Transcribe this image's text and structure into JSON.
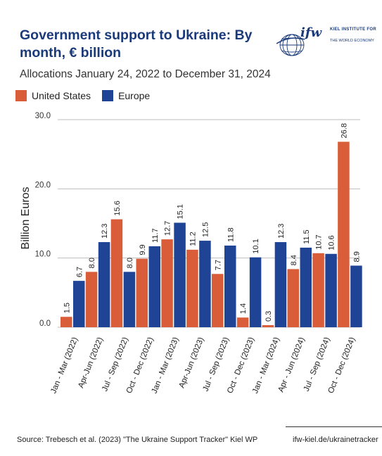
{
  "header": {
    "title": "Government support to Ukraine: By month, € billion",
    "subtitle": "Allocations January 24, 2022 to December 31, 2024"
  },
  "logo": {
    "word": "ifw",
    "line1": "KIEL INSTITUTE FOR",
    "line2": "THE WORLD ECONOMY"
  },
  "footer": {
    "source": "Source: Trebesch et al. (2023) \"The Ukraine Support Tracker\" Kiel WP",
    "url": "ifw-kiel.de/ukrainetracker"
  },
  "colors": {
    "united_states": "#d95d38",
    "europe": "#1f4496",
    "grid": "#bdbdbd",
    "title": "#1a3a7a"
  },
  "chart_data": {
    "type": "bar",
    "ylabel": "Billion Euros",
    "ylim": [
      0,
      30
    ],
    "yticks": [
      "0.0",
      "10.0",
      "20.0",
      "30.0"
    ],
    "grid": true,
    "legend_position": "top-left",
    "categories": [
      "Jan - Mar (2022)",
      "Apr-Jun (2022)",
      "Jul - Sep (2022)",
      "Oct - Dec (2022)",
      "Jan - Mar (2023)",
      "Apr-Jun (2023)",
      "Jul - Sep (2023)",
      "Oct - Dec (2023)",
      "Jan - Mar (2024)",
      "Apr - Jun (2024)",
      "Jul - Sep (2024)",
      "Oct - Dec (2024)"
    ],
    "series": [
      {
        "name": "United States",
        "values": [
          1.5,
          8.0,
          15.6,
          9.9,
          12.7,
          11.2,
          7.7,
          1.4,
          0.3,
          8.4,
          10.7,
          26.8
        ],
        "labels": [
          "1.5",
          "8.0",
          "15.6",
          "9.9",
          "12.7",
          "11.2",
          "7.7",
          "1.4",
          "0.3",
          "8.4",
          "10.7",
          "26.8"
        ]
      },
      {
        "name": "Europe",
        "values": [
          6.7,
          12.3,
          8.0,
          11.7,
          15.1,
          12.5,
          11.8,
          10.1,
          12.3,
          11.5,
          10.6,
          8.9
        ],
        "labels": [
          "6.7",
          "12.3",
          "8.0",
          "11.7",
          "15.1",
          "12.5",
          "11.8",
          "10.1",
          "12.3",
          "11.5",
          "10.6",
          "8.9"
        ]
      }
    ]
  }
}
